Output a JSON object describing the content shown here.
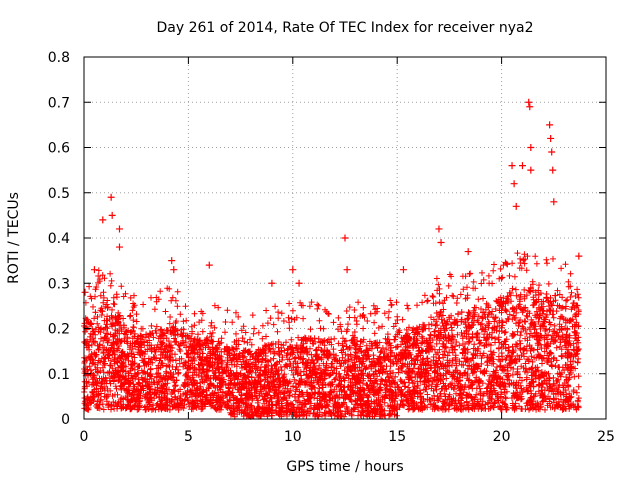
{
  "chart_data": {
    "type": "scatter",
    "title": "Day 261 of 2014, Rate Of TEC Index for receiver nya2",
    "xlabel": "GPS time / hours",
    "ylabel": "ROTI / TECUs",
    "xlim": [
      0,
      25
    ],
    "ylim": [
      0,
      0.8
    ],
    "grid": true,
    "marker": "+",
    "marker_color": "#ff0000",
    "x_ticks": [
      0,
      5,
      10,
      15,
      20,
      25
    ],
    "x_tick_labels": [
      "0",
      "5",
      "10",
      "15",
      "20",
      "25"
    ],
    "y_ticks": [
      0,
      0.1,
      0.2,
      0.3,
      0.4,
      0.5,
      0.6,
      0.7,
      0.8
    ],
    "y_tick_labels": [
      "0",
      "0.1",
      "0.2",
      "0.3",
      "0.4",
      "0.5",
      "0.6",
      "0.7",
      "0.8"
    ],
    "series": [
      {
        "name": "ROTI",
        "x_range": [
          0,
          23.7
        ],
        "typical_band": [
          0.02,
          0.25
        ],
        "notable_points": [
          {
            "x": 0.05,
            "y": 0.28
          },
          {
            "x": 0.5,
            "y": 0.33
          },
          {
            "x": 0.9,
            "y": 0.44
          },
          {
            "x": 1.3,
            "y": 0.49
          },
          {
            "x": 1.35,
            "y": 0.45
          },
          {
            "x": 1.7,
            "y": 0.38
          },
          {
            "x": 1.7,
            "y": 0.42
          },
          {
            "x": 4.2,
            "y": 0.35
          },
          {
            "x": 4.3,
            "y": 0.33
          },
          {
            "x": 6.0,
            "y": 0.34
          },
          {
            "x": 9.0,
            "y": 0.3
          },
          {
            "x": 10.0,
            "y": 0.33
          },
          {
            "x": 10.3,
            "y": 0.3
          },
          {
            "x": 12.5,
            "y": 0.4
          },
          {
            "x": 12.6,
            "y": 0.33
          },
          {
            "x": 15.3,
            "y": 0.33
          },
          {
            "x": 17.0,
            "y": 0.42
          },
          {
            "x": 17.1,
            "y": 0.39
          },
          {
            "x": 18.4,
            "y": 0.37
          },
          {
            "x": 20.5,
            "y": 0.56
          },
          {
            "x": 20.6,
            "y": 0.52
          },
          {
            "x": 20.7,
            "y": 0.47
          },
          {
            "x": 21.0,
            "y": 0.56
          },
          {
            "x": 21.3,
            "y": 0.7
          },
          {
            "x": 21.35,
            "y": 0.69
          },
          {
            "x": 21.4,
            "y": 0.6
          },
          {
            "x": 21.4,
            "y": 0.55
          },
          {
            "x": 22.3,
            "y": 0.65
          },
          {
            "x": 22.35,
            "y": 0.62
          },
          {
            "x": 22.4,
            "y": 0.59
          },
          {
            "x": 22.45,
            "y": 0.55
          },
          {
            "x": 22.5,
            "y": 0.48
          },
          {
            "x": 23.7,
            "y": 0.36
          }
        ]
      }
    ]
  }
}
